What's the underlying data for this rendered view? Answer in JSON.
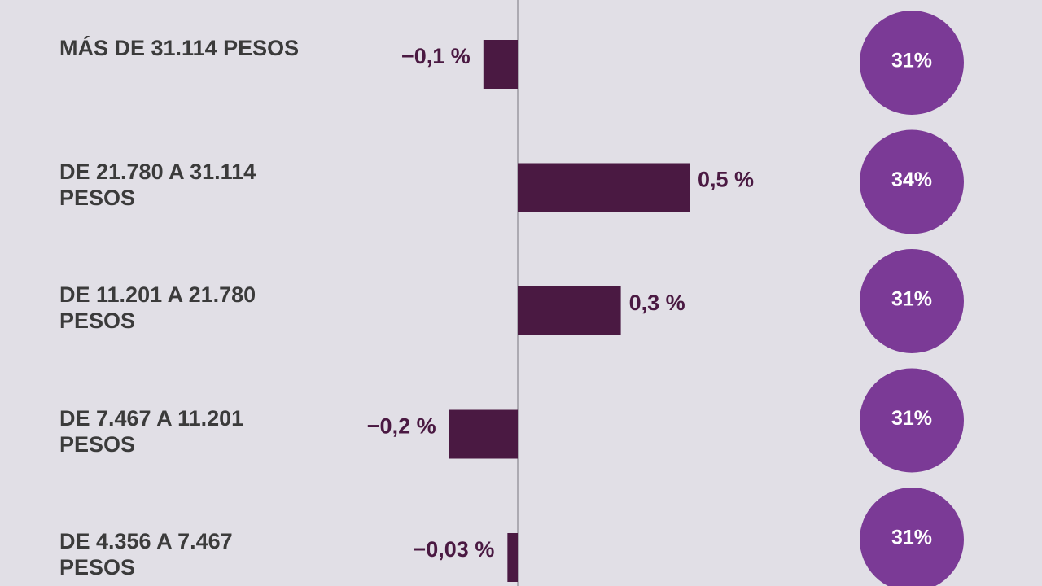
{
  "chart_data": {
    "type": "bar",
    "orientation": "horizontal",
    "categories": [
      "MÁS DE 31.114 PESOS",
      "DE 21.780 A 31.114 PESOS",
      "DE 11.201 A 21.780 PESOS",
      "DE 7.467 A 11.201 PESOS",
      "DE 4.356 A 7.467 PESOS"
    ],
    "values": [
      -0.1,
      0.5,
      0.3,
      -0.2,
      -0.03
    ],
    "value_labels": [
      "−0,1 %",
      "0,5 %",
      "0,3 %",
      "−0,2 %",
      "−0,03 %"
    ],
    "color": "#4a1942",
    "circles": {
      "color": "#7b3a96",
      "values": [
        31,
        34,
        31,
        31,
        31
      ],
      "value_labels": [
        "31%",
        "34%",
        "31%",
        "31%",
        "31%"
      ]
    }
  }
}
